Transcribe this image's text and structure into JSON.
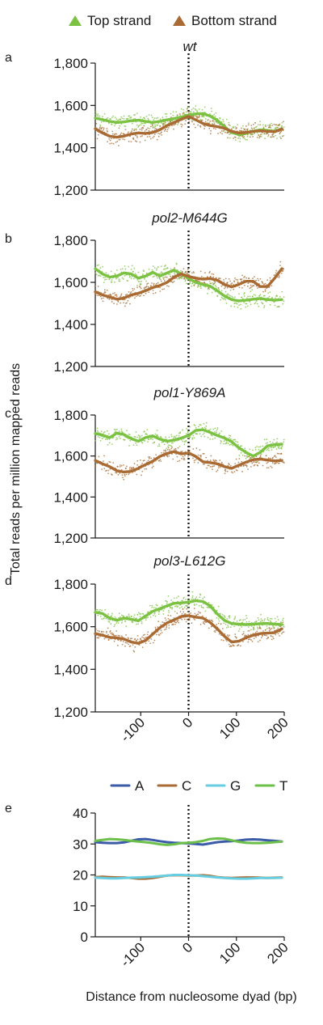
{
  "legend_top": [
    {
      "label": "Top strand",
      "color": "#7cc242",
      "marker": "triangle"
    },
    {
      "label": "Bottom strand",
      "color": "#a96b33",
      "marker": "triangle"
    }
  ],
  "legend_bottom": [
    {
      "label": "A",
      "color": "#3b5aa8"
    },
    {
      "label": "C",
      "color": "#a96b33"
    },
    {
      "label": "G",
      "color": "#67cde0"
    },
    {
      "label": "T",
      "color": "#6cc04a"
    }
  ],
  "y_axis_title": "Total reads per million mapped reads",
  "x_axis_title": "Distance from nucleosome dyad (bp)",
  "chart_data": [
    {
      "type": "line",
      "panel": "a",
      "title": "wt",
      "x": [
        -195,
        -180,
        -165,
        -150,
        -135,
        -120,
        -105,
        -90,
        -75,
        -60,
        -45,
        -30,
        -15,
        0,
        15,
        30,
        45,
        60,
        75,
        90,
        105,
        120,
        135,
        150,
        165,
        180,
        195
      ],
      "series": [
        {
          "name": "Top strand",
          "color": "#7cc242",
          "values": [
            1540,
            1533,
            1525,
            1520,
            1522,
            1528,
            1530,
            1525,
            1520,
            1525,
            1532,
            1538,
            1545,
            1555,
            1560,
            1562,
            1550,
            1530,
            1500,
            1472,
            1462,
            1468,
            1478,
            1485,
            1482,
            1478,
            1490
          ]
        },
        {
          "name": "Bottom strand",
          "color": "#a96b33",
          "values": [
            1490,
            1470,
            1455,
            1450,
            1455,
            1465,
            1470,
            1468,
            1472,
            1485,
            1505,
            1520,
            1535,
            1548,
            1532,
            1515,
            1505,
            1500,
            1492,
            1478,
            1470,
            1472,
            1478,
            1480,
            1478,
            1476,
            1488
          ]
        }
      ],
      "xlim": [
        -195,
        200
      ],
      "ylim": [
        1200,
        1800
      ],
      "yticks": [
        {
          "value": 1200,
          "label": "1,200"
        },
        {
          "value": 1400,
          "label": "1,400"
        },
        {
          "value": 1600,
          "label": "1,600"
        },
        {
          "value": 1800,
          "label": "1,800"
        }
      ],
      "xticks": []
    },
    {
      "type": "line",
      "panel": "b",
      "title": "pol2-M644G",
      "x": [
        -195,
        -180,
        -165,
        -150,
        -135,
        -120,
        -105,
        -90,
        -75,
        -60,
        -45,
        -30,
        -15,
        0,
        15,
        30,
        45,
        60,
        75,
        90,
        105,
        120,
        135,
        150,
        165,
        180,
        195
      ],
      "series": [
        {
          "name": "Top strand",
          "color": "#7cc242",
          "values": [
            1665,
            1640,
            1625,
            1630,
            1645,
            1640,
            1620,
            1630,
            1648,
            1630,
            1645,
            1658,
            1640,
            1618,
            1600,
            1590,
            1582,
            1560,
            1535,
            1518,
            1512,
            1515,
            1520,
            1523,
            1518,
            1515,
            1518
          ]
        },
        {
          "name": "Bottom strand",
          "color": "#a96b33",
          "values": [
            1555,
            1540,
            1530,
            1520,
            1525,
            1540,
            1548,
            1560,
            1575,
            1585,
            1600,
            1625,
            1640,
            1628,
            1620,
            1615,
            1618,
            1610,
            1590,
            1578,
            1590,
            1605,
            1605,
            1580,
            1580,
            1620,
            1665
          ]
        }
      ],
      "xlim": [
        -195,
        200
      ],
      "ylim": [
        1200,
        1800
      ],
      "yticks": [
        {
          "value": 1200,
          "label": "1,200"
        },
        {
          "value": 1400,
          "label": "1,400"
        },
        {
          "value": 1600,
          "label": "1,600"
        },
        {
          "value": 1800,
          "label": "1,800"
        }
      ],
      "xticks": []
    },
    {
      "type": "line",
      "panel": "c",
      "title": "pol1-Y869A",
      "x": [
        -195,
        -180,
        -165,
        -150,
        -135,
        -120,
        -105,
        -90,
        -75,
        -60,
        -45,
        -30,
        -15,
        0,
        15,
        30,
        45,
        60,
        75,
        90,
        105,
        120,
        135,
        150,
        165,
        180,
        195
      ],
      "series": [
        {
          "name": "Top strand",
          "color": "#7cc242",
          "values": [
            1710,
            1702,
            1690,
            1712,
            1705,
            1685,
            1672,
            1690,
            1698,
            1682,
            1672,
            1678,
            1688,
            1700,
            1725,
            1728,
            1715,
            1700,
            1688,
            1670,
            1640,
            1618,
            1600,
            1618,
            1650,
            1655,
            1658
          ]
        },
        {
          "name": "Bottom strand",
          "color": "#a96b33",
          "values": [
            1578,
            1562,
            1548,
            1528,
            1522,
            1525,
            1540,
            1558,
            1575,
            1598,
            1612,
            1622,
            1610,
            1615,
            1598,
            1572,
            1568,
            1562,
            1548,
            1540,
            1555,
            1570,
            1582,
            1585,
            1580,
            1576,
            1578
          ]
        }
      ],
      "xlim": [
        -195,
        200
      ],
      "ylim": [
        1200,
        1800
      ],
      "yticks": [
        {
          "value": 1200,
          "label": "1,200"
        },
        {
          "value": 1400,
          "label": "1,400"
        },
        {
          "value": 1600,
          "label": "1,600"
        },
        {
          "value": 1800,
          "label": "1,800"
        }
      ],
      "xticks": []
    },
    {
      "type": "line",
      "panel": "d",
      "title": "pol3-L612G",
      "x": [
        -195,
        -180,
        -165,
        -150,
        -135,
        -120,
        -105,
        -90,
        -75,
        -60,
        -45,
        -30,
        -15,
        0,
        15,
        30,
        45,
        60,
        75,
        90,
        105,
        120,
        135,
        150,
        165,
        180,
        195
      ],
      "series": [
        {
          "name": "Top strand",
          "color": "#7cc242",
          "values": [
            1668,
            1662,
            1640,
            1630,
            1640,
            1635,
            1628,
            1650,
            1672,
            1685,
            1698,
            1710,
            1712,
            1715,
            1722,
            1718,
            1698,
            1660,
            1630,
            1615,
            1612,
            1610,
            1612,
            1614,
            1615,
            1612,
            1610
          ]
        },
        {
          "name": "Bottom strand",
          "color": "#a96b33",
          "values": [
            1568,
            1560,
            1550,
            1548,
            1542,
            1528,
            1522,
            1535,
            1565,
            1595,
            1618,
            1632,
            1648,
            1652,
            1645,
            1640,
            1620,
            1590,
            1555,
            1528,
            1532,
            1548,
            1560,
            1568,
            1570,
            1572,
            1590
          ]
        }
      ],
      "xlim": [
        -195,
        200
      ],
      "ylim": [
        1200,
        1800
      ],
      "yticks": [
        {
          "value": 1200,
          "label": "1,200"
        },
        {
          "value": 1400,
          "label": "1,400"
        },
        {
          "value": 1600,
          "label": "1,600"
        },
        {
          "value": 1800,
          "label": "1,800"
        }
      ],
      "xticks": [
        {
          "value": -100,
          "label": "-100"
        },
        {
          "value": 0,
          "label": "0"
        },
        {
          "value": 100,
          "label": "100"
        },
        {
          "value": 200,
          "label": "200"
        }
      ]
    },
    {
      "type": "line",
      "panel": "e",
      "title": "",
      "x": [
        -195,
        -180,
        -165,
        -150,
        -135,
        -120,
        -105,
        -90,
        -75,
        -60,
        -45,
        -30,
        -15,
        0,
        15,
        30,
        45,
        60,
        75,
        90,
        105,
        120,
        135,
        150,
        165,
        180,
        195
      ],
      "series": [
        {
          "name": "A",
          "color": "#3b5aa8",
          "values": [
            30.6,
            30.4,
            30.3,
            30.3,
            30.5,
            31.0,
            31.5,
            31.6,
            31.3,
            30.9,
            30.6,
            30.4,
            30.3,
            30.2,
            30.0,
            29.8,
            30.2,
            30.6,
            30.8,
            30.9,
            31.1,
            31.4,
            31.5,
            31.4,
            31.2,
            31.0,
            30.8
          ]
        },
        {
          "name": "C",
          "color": "#a96b33",
          "values": [
            19.3,
            19.4,
            19.3,
            19.2,
            19.2,
            19.0,
            18.8,
            18.8,
            19.0,
            19.4,
            19.8,
            19.9,
            19.9,
            19.8,
            19.8,
            19.9,
            19.7,
            19.3,
            19.1,
            19.0,
            19.1,
            19.2,
            19.2,
            19.1,
            19.0,
            19.1,
            19.2
          ]
        },
        {
          "name": "G",
          "color": "#67cde0",
          "values": [
            19.1,
            19.0,
            18.9,
            18.9,
            19.0,
            19.1,
            19.2,
            19.3,
            19.4,
            19.6,
            19.8,
            20.0,
            20.0,
            19.9,
            19.8,
            19.6,
            19.4,
            19.2,
            19.0,
            18.9,
            18.8,
            18.8,
            18.9,
            19.0,
            19.0,
            19.0,
            19.1
          ]
        },
        {
          "name": "T",
          "color": "#6cc04a",
          "values": [
            31.0,
            31.3,
            31.6,
            31.5,
            31.3,
            31.0,
            30.8,
            30.6,
            30.3,
            29.9,
            29.7,
            29.9,
            30.3,
            30.4,
            30.6,
            31.0,
            31.6,
            31.8,
            31.7,
            31.2,
            30.7,
            30.4,
            30.3,
            30.3,
            30.4,
            30.6,
            30.8
          ]
        }
      ],
      "xlim": [
        -195,
        200
      ],
      "ylim": [
        0,
        40
      ],
      "yticks": [
        {
          "value": 0,
          "label": "0"
        },
        {
          "value": 10,
          "label": "10"
        },
        {
          "value": 20,
          "label": "20"
        },
        {
          "value": 30,
          "label": "30"
        },
        {
          "value": 40,
          "label": "40"
        }
      ],
      "xticks": [
        {
          "value": -100,
          "label": "-100"
        },
        {
          "value": 0,
          "label": "0"
        },
        {
          "value": 100,
          "label": "100"
        },
        {
          "value": 200,
          "label": "200"
        }
      ]
    }
  ]
}
